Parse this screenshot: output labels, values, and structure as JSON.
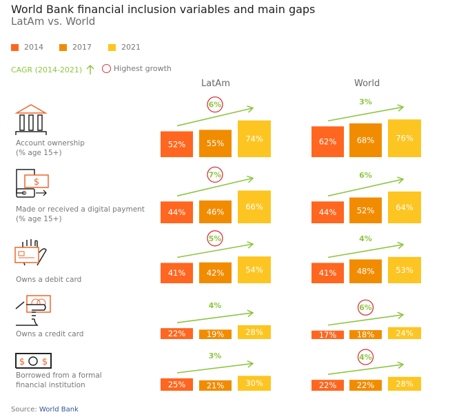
{
  "title": "World Bank financial inclusion variables and main gaps",
  "subtitle": "LatAm vs. World",
  "legend": [
    {
      "label": "2014",
      "color": "#ff661f"
    },
    {
      "label": "2017",
      "color": "#f18c00"
    },
    {
      "label": "2021",
      "color": "#fdc521"
    }
  ],
  "cagr_label": "CAGR (2014-2021)",
  "highest_growth_label": "Highest growth",
  "source_prefix": "Source:",
  "source_name": "World Bank",
  "chart_data": {
    "type": "bar",
    "title": "World Bank financial inclusion variables and main gaps",
    "groups": [
      "LatAm",
      "World"
    ],
    "series_names": [
      "2014",
      "2017",
      "2021"
    ],
    "unit": "%",
    "rows": [
      {
        "label": [
          "Account ownership",
          "(% age 15+)"
        ],
        "icon": "bank-icon",
        "LatAm": {
          "values": [
            52,
            55,
            74
          ],
          "cagr": "6%",
          "highest": true
        },
        "World": {
          "values": [
            62,
            68,
            76
          ],
          "cagr": "3%",
          "highest": false
        }
      },
      {
        "label": [
          "Made or received a digital payment",
          "(% age 15+)"
        ],
        "icon": "phone-payment-icon",
        "LatAm": {
          "values": [
            44,
            46,
            66
          ],
          "cagr": "7%",
          "highest": true
        },
        "World": {
          "values": [
            44,
            52,
            64
          ],
          "cagr": "6%",
          "highest": false
        }
      },
      {
        "label": [
          "Owns a debit card"
        ],
        "icon": "debit-card-icon",
        "LatAm": {
          "values": [
            41,
            42,
            54
          ],
          "cagr": "5%",
          "highest": true
        },
        "World": {
          "values": [
            41,
            48,
            53
          ],
          "cagr": "4%",
          "highest": false
        }
      },
      {
        "label": [
          "Owns a credit card"
        ],
        "icon": "credit-card-icon",
        "LatAm": {
          "values": [
            22,
            19,
            28
          ],
          "cagr": "4%",
          "highest": false
        },
        "World": {
          "values": [
            17,
            18,
            24
          ],
          "cagr": "6%",
          "highest": true
        }
      },
      {
        "label": [
          "Borrowed from a formal",
          "financial institution"
        ],
        "icon": "banknote-icon",
        "LatAm": {
          "values": [
            25,
            21,
            30
          ],
          "cagr": "3%",
          "highest": false
        },
        "World": {
          "values": [
            22,
            22,
            28
          ],
          "cagr": "4%",
          "highest": true
        }
      }
    ]
  }
}
